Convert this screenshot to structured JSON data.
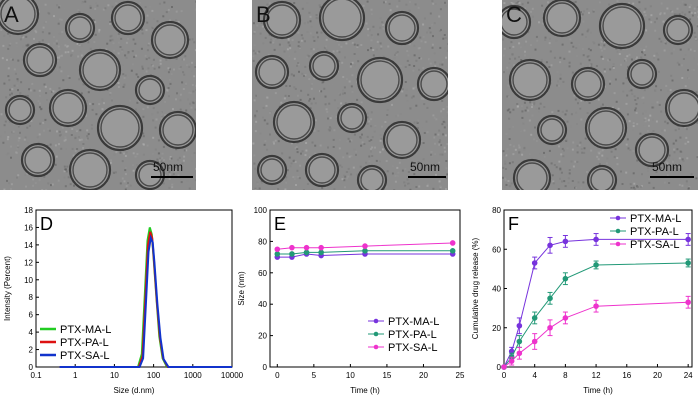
{
  "micrographs": [
    {
      "letter": "A",
      "scale_label": "50nm"
    },
    {
      "letter": "B",
      "scale_label": "50nm"
    },
    {
      "letter": "C",
      "scale_label": "50nm"
    }
  ],
  "chart_data": [
    {
      "panel": "D",
      "type": "line",
      "xlabel": "Size (d.nm)",
      "ylabel": "Intensity (Percent)",
      "xscale": "log",
      "xlim": [
        0.1,
        10000
      ],
      "ylim": [
        0,
        18
      ],
      "xticks": [
        "0.1",
        "1",
        "10",
        "100",
        "1000",
        "10000"
      ],
      "yticks": [
        "0",
        "2",
        "4",
        "6",
        "8",
        "10",
        "12",
        "14",
        "16",
        "18"
      ],
      "legend": "left",
      "colors": [
        "#22cc22",
        "#dd1111",
        "#1133cc"
      ],
      "series": [
        {
          "name": "PTX-MA-L",
          "x": [
            0.4,
            40,
            50,
            60,
            70,
            80,
            90,
            100,
            120,
            140,
            170,
            220,
            10000
          ],
          "y": [
            0,
            0,
            1.5,
            8.5,
            14.5,
            16.0,
            15.2,
            12.5,
            7.5,
            3.5,
            1.0,
            0,
            0
          ]
        },
        {
          "name": "PTX-PA-L",
          "x": [
            0.4,
            42,
            52,
            62,
            72,
            82,
            92,
            102,
            122,
            145,
            175,
            230,
            10000
          ],
          "y": [
            0,
            0,
            1.2,
            8.0,
            14.0,
            15.5,
            14.8,
            12.3,
            7.3,
            3.4,
            1.0,
            0,
            0
          ]
        },
        {
          "name": "PTX-SA-L",
          "x": [
            0.4,
            44,
            54,
            64,
            74,
            85,
            95,
            105,
            125,
            150,
            180,
            240,
            10000
          ],
          "y": [
            0,
            0,
            1.0,
            7.5,
            13.2,
            14.8,
            14.3,
            12.0,
            7.2,
            3.3,
            0.9,
            0,
            0
          ]
        }
      ]
    },
    {
      "panel": "E",
      "type": "line",
      "xlabel": "Time (h)",
      "ylabel": "Size (nm)",
      "xlim": [
        -1,
        25
      ],
      "ylim": [
        0,
        100
      ],
      "xticks": [
        "0",
        "5",
        "10",
        "15",
        "20",
        "25"
      ],
      "yticks": [
        "0",
        "20",
        "40",
        "60",
        "80",
        "100"
      ],
      "legend": "bottom-right",
      "colors": [
        "#7733dd",
        "#229977",
        "#ee33cc"
      ],
      "series": [
        {
          "name": "PTX-MA-L",
          "x": [
            0,
            2,
            4,
            6,
            12,
            24
          ],
          "y": [
            70,
            70,
            72,
            71,
            72,
            72
          ]
        },
        {
          "name": "PTX-PA-L",
          "x": [
            0,
            2,
            4,
            6,
            12,
            24
          ],
          "y": [
            72,
            72,
            73,
            73,
            74,
            74
          ]
        },
        {
          "name": "PTX-SA-L",
          "x": [
            0,
            2,
            4,
            6,
            12,
            24
          ],
          "y": [
            75,
            76,
            76,
            76,
            77,
            79
          ]
        }
      ]
    },
    {
      "panel": "F",
      "type": "line",
      "xlabel": "Time (h)",
      "ylabel": "Cumulative drug release (%)",
      "xlim": [
        0,
        24.5
      ],
      "ylim": [
        0,
        80
      ],
      "xticks": [
        "0",
        "4",
        "8",
        "12",
        "16",
        "20",
        "24"
      ],
      "yticks": [
        "0",
        "20",
        "40",
        "60",
        "80"
      ],
      "legend": "top-right",
      "colors": [
        "#7733dd",
        "#229977",
        "#ee33cc"
      ],
      "series": [
        {
          "name": "PTX-MA-L",
          "x": [
            0,
            1,
            2,
            4,
            6,
            8,
            12,
            24
          ],
          "y": [
            0,
            8,
            21,
            53,
            62,
            64,
            65,
            65
          ],
          "err": [
            0,
            2,
            4,
            3,
            4,
            3,
            3,
            3
          ]
        },
        {
          "name": "PTX-PA-L",
          "x": [
            0,
            1,
            2,
            4,
            6,
            8,
            12,
            24
          ],
          "y": [
            0,
            5,
            13,
            25,
            35,
            45,
            52,
            53
          ],
          "err": [
            0,
            2,
            3,
            3,
            3,
            3,
            2,
            2
          ]
        },
        {
          "name": "PTX-SA-L",
          "x": [
            0,
            1,
            2,
            4,
            6,
            8,
            12,
            24
          ],
          "y": [
            0,
            3,
            7,
            13,
            20,
            25,
            31,
            33
          ],
          "err": [
            0,
            2,
            3,
            4,
            4,
            3,
            3,
            3
          ]
        }
      ]
    }
  ]
}
